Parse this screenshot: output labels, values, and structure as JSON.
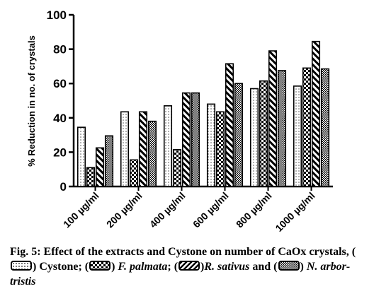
{
  "chart_data": {
    "type": "bar",
    "ylabel": "% Reduction in no. of crystals",
    "xlabel": "",
    "ylim": [
      0,
      100
    ],
    "yticks": [
      0,
      20,
      40,
      60,
      80,
      100
    ],
    "categories": [
      "100 µg/ml",
      "200 µg/ml",
      "400 µg/ml",
      "600 µg/ml",
      "800 µg/ml",
      "1000 µg/ml"
    ],
    "series": [
      {
        "name": "Cystone",
        "pattern": "dots",
        "values": [
          34.5,
          43.5,
          47,
          48,
          57,
          58.5
        ]
      },
      {
        "name": "F. palmata",
        "pattern": "checker",
        "values": [
          11,
          15.5,
          21.5,
          43.5,
          61.5,
          69
        ]
      },
      {
        "name": "R. sativus",
        "pattern": "diagonal",
        "values": [
          22.5,
          43.5,
          54.5,
          71.5,
          79,
          84.5
        ]
      },
      {
        "name": "N. arbor-tristis",
        "pattern": "fine-checker",
        "values": [
          29.5,
          38,
          54.5,
          60,
          67.5,
          68.5
        ]
      }
    ],
    "grid": false,
    "legend": "caption"
  },
  "caption": {
    "label": "Fig. 5:",
    "text1": "Effect of the extracts and Cystone on number of CaOx crystals, (",
    "text2": ") Cystone; (",
    "text3": ") ",
    "name_fpalmata": "F. palmata",
    "text4": "; (",
    "text5": ")",
    "name_rsativus": "R. sativus",
    "text6": " and (",
    "text7": ") ",
    "name_narbor": "N. arbor-tristis"
  }
}
